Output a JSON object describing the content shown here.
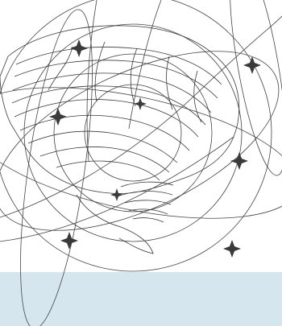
{
  "image": {
    "subject": "brain-illustration",
    "style": "line-art-engraving",
    "colors": {
      "background": "#ffffff",
      "line": "#3a3a3a",
      "band": "#d6e6ee"
    },
    "icons": [
      "sparkle-star-icon"
    ]
  }
}
